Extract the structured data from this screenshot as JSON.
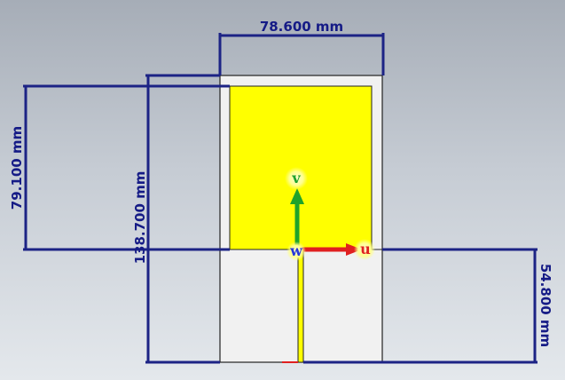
{
  "dimensions": {
    "width_label": "78.600 mm",
    "patch_height_label": "79.100 mm",
    "board_height_label": "138.700 mm",
    "ground_height_label": "54.800 mm"
  },
  "axes": {
    "u_label": "u",
    "v_label": "v",
    "w_label": "w"
  },
  "colors": {
    "dimension_line": "#1c2385",
    "patch": "#ffff00",
    "substrate": "#f1f1f1",
    "u_axis": "#e02020",
    "v_axis": "#1fa32b",
    "w_axis": "#2637d9",
    "background_top": "#a6adb7",
    "background_bottom": "#e4e8ec"
  }
}
